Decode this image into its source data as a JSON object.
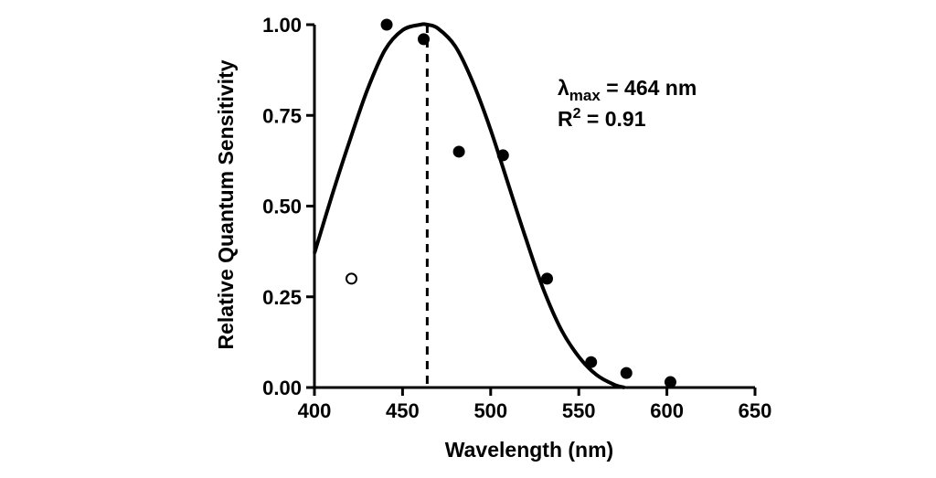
{
  "chart_data": {
    "type": "scatter",
    "xlabel": "Wavelength (nm)",
    "ylabel": "Relative Quantum Sensitivity",
    "xlim": [
      400,
      650
    ],
    "ylim": [
      0,
      1
    ],
    "x_ticks": [
      "400",
      "450",
      "500",
      "550",
      "600",
      "650"
    ],
    "y_ticks": [
      "0.00",
      "0.25",
      "0.50",
      "0.75",
      "1.00"
    ],
    "x_tick_values": [
      400,
      450,
      500,
      550,
      600,
      650
    ],
    "y_tick_values": [
      0,
      0.25,
      0.5,
      0.75,
      1.0
    ],
    "grid": false,
    "points_filled": [
      {
        "x": 441,
        "y": 1.0
      },
      {
        "x": 462,
        "y": 0.96
      },
      {
        "x": 482,
        "y": 0.65
      },
      {
        "x": 507,
        "y": 0.64
      },
      {
        "x": 532,
        "y": 0.3
      },
      {
        "x": 557,
        "y": 0.07
      },
      {
        "x": 577,
        "y": 0.04
      },
      {
        "x": 602,
        "y": 0.015
      }
    ],
    "points_open": [
      {
        "x": 421,
        "y": 0.3
      }
    ],
    "fit_curve": {
      "x": [
        400,
        410,
        420,
        430,
        440,
        450,
        460,
        464,
        470,
        480,
        490,
        500,
        510,
        520,
        530,
        540,
        550,
        560,
        570,
        576
      ],
      "y": [
        0.37,
        0.53,
        0.68,
        0.82,
        0.93,
        0.985,
        1.0,
        1.0,
        0.99,
        0.94,
        0.84,
        0.71,
        0.56,
        0.41,
        0.27,
        0.16,
        0.085,
        0.035,
        0.008,
        0.0
      ]
    },
    "lambda_max": 464,
    "annotations": {
      "lambda_symbol": "λ",
      "lambda_sub": "max",
      "lambda_value": " = 464 nm",
      "r2_prefix": "R",
      "r2_sup": "2",
      "r2_value": " = 0.91"
    }
  }
}
